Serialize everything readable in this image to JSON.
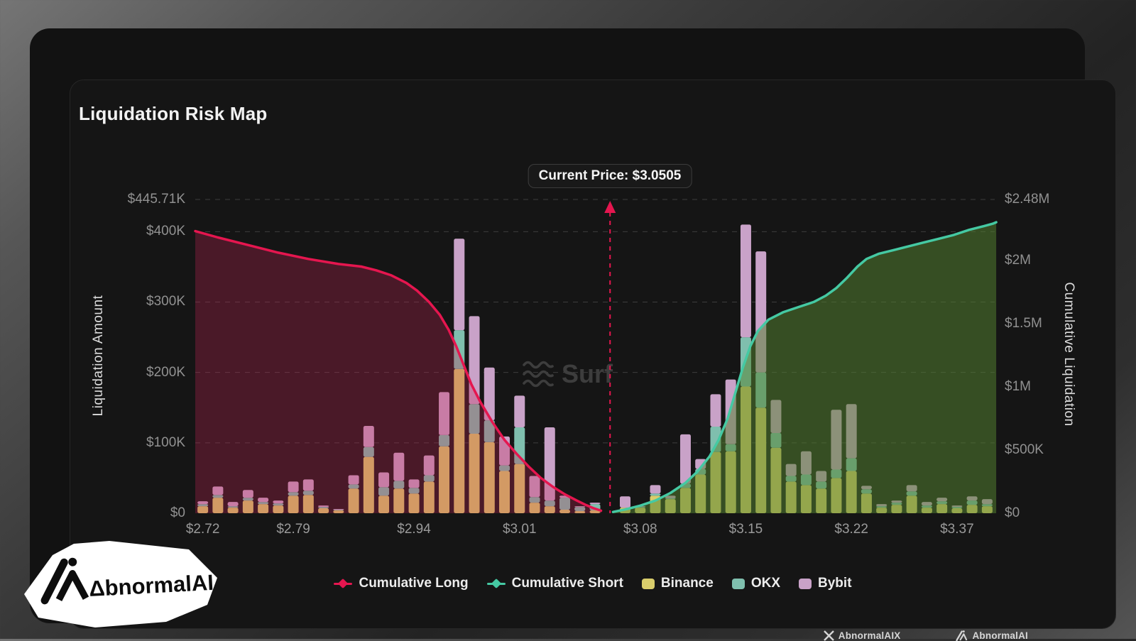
{
  "title": "Liquidation Risk Map",
  "current_price": {
    "label": "Current Price: $3.0505",
    "value": 3.0505
  },
  "watermark": {
    "label": "Surf"
  },
  "left_axis": {
    "title": "Liquidation Amount",
    "ticks": [
      {
        "label": "$445.71K",
        "value": 445.71
      },
      {
        "label": "$400K",
        "value": 400
      },
      {
        "label": "$300K",
        "value": 300
      },
      {
        "label": "$200K",
        "value": 200
      },
      {
        "label": "$100K",
        "value": 100
      },
      {
        "label": "$0",
        "value": 0
      }
    ],
    "max": 445.71
  },
  "right_axis": {
    "title": "Cumulative Liquidation",
    "ticks": [
      {
        "label": "$2.48M",
        "value": 2.48
      },
      {
        "label": "$2M",
        "value": 2.0
      },
      {
        "label": "$1.5M",
        "value": 1.5
      },
      {
        "label": "$1M",
        "value": 1.0
      },
      {
        "label": "$500K",
        "value": 0.5
      },
      {
        "label": "$0",
        "value": 0
      }
    ],
    "max": 2.48
  },
  "legend": {
    "items": [
      {
        "label": "Cumulative Long",
        "marker": "line-diamond",
        "color": "#e5164f"
      },
      {
        "label": "Cumulative Short",
        "marker": "line-diamond",
        "color": "#45c9a3"
      },
      {
        "label": "Binance",
        "marker": "swatch",
        "color": "#d9cd6b"
      },
      {
        "label": "OKX",
        "marker": "swatch",
        "color": "#7fbfae"
      },
      {
        "label": "Bybit",
        "marker": "swatch",
        "color": "#c9a2c8"
      }
    ]
  },
  "colors": {
    "accent_long": "#e5164f",
    "accent_short": "#45c9a3",
    "binance": "#d9cd6b",
    "okx": "#7fbfae",
    "bybit": "#c9a2c8",
    "long_area": "rgba(199,38,85,0.30)",
    "short_area": "rgba(85,130,48,0.52)",
    "grid": "#3d3d3d"
  },
  "footer": {
    "x_handle": "AbnormalAIX",
    "brand": "AbnormalAI"
  },
  "sticker": {
    "brand": "ΔbnormalAI"
  },
  "chart_data": {
    "type": "bar+line",
    "title": "Liquidation Risk Map",
    "bar_unit": "USD thousands (left axis)",
    "line_unit": "USD millions (right axis)",
    "left_axis_range": [
      0,
      445.71
    ],
    "right_axis_range": [
      0,
      2.48
    ],
    "grid": "dashed horizontal at left-axis ticks",
    "legend_position": "bottom-center",
    "slots": 53,
    "gap_slot": 27,
    "current_price_slot": 27.5,
    "x_tick_labels": [
      {
        "label": "$2.72",
        "slot": 0
      },
      {
        "label": "$2.79",
        "slot": 6
      },
      {
        "label": "$2.94",
        "slot": 14
      },
      {
        "label": "$3.01",
        "slot": 21
      },
      {
        "label": "$3.08",
        "slot": 29
      },
      {
        "label": "$3.15",
        "slot": 36
      },
      {
        "label": "$3.22",
        "slot": 43
      },
      {
        "label": "$3.37",
        "slot": 50
      }
    ],
    "series": [
      {
        "name": "Binance",
        "type": "bar",
        "stack_order": 0,
        "values": [
          10,
          22,
          8,
          18,
          13,
          11,
          25,
          26,
          7,
          4,
          35,
          80,
          25,
          35,
          28,
          45,
          95,
          205,
          113,
          101,
          60,
          70,
          15,
          10,
          5,
          3,
          4,
          null,
          8,
          8,
          25,
          20,
          36,
          55,
          87,
          88,
          180,
          150,
          93,
          45,
          40,
          35,
          50,
          60,
          28,
          8,
          12,
          25,
          8,
          13,
          7,
          12,
          10
        ]
      },
      {
        "name": "OKX",
        "type": "bar",
        "stack_order": 1,
        "values": [
          3,
          4,
          2,
          4,
          3,
          3,
          5,
          6,
          2,
          1,
          6,
          14,
          12,
          11,
          8,
          9,
          16,
          55,
          42,
          31,
          8,
          52,
          8,
          8,
          17,
          6,
          9,
          null,
          0,
          1,
          3,
          1,
          6,
          8,
          36,
          10,
          70,
          50,
          21,
          8,
          15,
          10,
          12,
          18,
          6,
          2,
          3,
          6,
          3,
          4,
          2,
          6,
          3
        ]
      },
      {
        "name": "Bybit",
        "type": "bar",
        "stack_order": 2,
        "values": [
          4,
          12,
          6,
          11,
          6,
          4,
          15,
          16,
          2,
          1,
          13,
          30,
          21,
          40,
          12,
          28,
          61,
          130,
          125,
          75,
          41,
          45,
          30,
          104,
          3,
          1,
          2,
          null,
          16,
          1,
          12,
          4,
          70,
          14,
          46,
          92,
          160,
          172,
          47,
          17,
          33,
          15,
          85,
          77,
          5,
          3,
          3,
          9,
          5,
          5,
          2,
          6,
          7
        ]
      },
      {
        "name": "Cumulative Long",
        "type": "line",
        "axis": "right",
        "points": [
          [
            -0.5,
            2.23
          ],
          [
            1,
            2.18
          ],
          [
            3,
            2.12
          ],
          [
            5,
            2.06
          ],
          [
            7,
            2.01
          ],
          [
            9,
            1.97
          ],
          [
            10.5,
            1.95
          ],
          [
            11.5,
            1.92
          ],
          [
            12.5,
            1.88
          ],
          [
            13.5,
            1.82
          ],
          [
            14.2,
            1.76
          ],
          [
            15,
            1.67
          ],
          [
            15.7,
            1.57
          ],
          [
            16.3,
            1.45
          ],
          [
            16.8,
            1.32
          ],
          [
            17.3,
            1.17
          ],
          [
            17.8,
            1.02
          ],
          [
            18.4,
            0.88
          ],
          [
            19.2,
            0.72
          ],
          [
            20,
            0.58
          ],
          [
            20.8,
            0.47
          ],
          [
            21.6,
            0.37
          ],
          [
            22.4,
            0.28
          ],
          [
            23.2,
            0.21
          ],
          [
            24,
            0.15
          ],
          [
            24.8,
            0.1
          ],
          [
            25.4,
            0.065
          ],
          [
            25.9,
            0.04
          ],
          [
            26.4,
            0.02
          ]
        ]
      },
      {
        "name": "Cumulative Short",
        "type": "line",
        "axis": "right",
        "points": [
          [
            27.2,
            0.01
          ],
          [
            28,
            0.03
          ],
          [
            29,
            0.06
          ],
          [
            30,
            0.1
          ],
          [
            31,
            0.16
          ],
          [
            32,
            0.24
          ],
          [
            32.8,
            0.33
          ],
          [
            33.6,
            0.45
          ],
          [
            34.2,
            0.58
          ],
          [
            34.8,
            0.75
          ],
          [
            35.3,
            0.95
          ],
          [
            35.8,
            1.15
          ],
          [
            36.3,
            1.32
          ],
          [
            36.8,
            1.44
          ],
          [
            37.5,
            1.53
          ],
          [
            38.5,
            1.59
          ],
          [
            39.5,
            1.63
          ],
          [
            40.5,
            1.67
          ],
          [
            41.3,
            1.72
          ],
          [
            42,
            1.78
          ],
          [
            42.7,
            1.86
          ],
          [
            43.4,
            1.95
          ],
          [
            44,
            2.01
          ],
          [
            44.8,
            2.05
          ],
          [
            45.8,
            2.08
          ],
          [
            46.8,
            2.11
          ],
          [
            47.8,
            2.14
          ],
          [
            48.8,
            2.17
          ],
          [
            49.8,
            2.2
          ],
          [
            50.8,
            2.24
          ],
          [
            51.8,
            2.27
          ],
          [
            52.4,
            2.29
          ],
          [
            52.6,
            2.3
          ]
        ]
      }
    ]
  }
}
